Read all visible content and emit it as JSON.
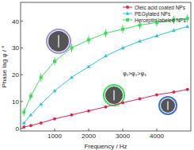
{
  "chart_data": {
    "type": "line",
    "x_label": "Frequency / Hz",
    "y_label": "Phase lag φ / °",
    "annotation": "φ₁>φ₂>φ₃",
    "xlim": [
      0,
      5000
    ],
    "xticks": [
      1000,
      2000,
      3000,
      4000
    ],
    "ylim": [
      -1,
      47
    ],
    "yticks": [
      0,
      10,
      20,
      30,
      40
    ],
    "legend": "top-right",
    "x": [
      100,
      300,
      600,
      1000,
      1500,
      2000,
      2500,
      3000,
      3500,
      4000,
      4500,
      4900
    ],
    "series": [
      {
        "name": "Oleic acid coated NPs",
        "color": "#e0264f",
        "marker": "circle",
        "values": [
          0.5,
          1,
          2,
          3.5,
          5,
          6.5,
          8,
          9.5,
          11,
          12.5,
          13.5,
          14.5
        ]
      },
      {
        "name": "PEGylated NPs",
        "color": "#2ec4d6",
        "marker": "triangle",
        "values": [
          2,
          5,
          9,
          14,
          19,
          23,
          27,
          30,
          32.5,
          34.5,
          36.5,
          38
        ]
      },
      {
        "name": "Herceptin labeled NPs",
        "color": "#3ddc5a",
        "marker": "square",
        "values": [
          6,
          12,
          19,
          25,
          30,
          33,
          35.5,
          37,
          38.5,
          39.5,
          40.5,
          41
        ],
        "errors": [
          1.5,
          1.5,
          1.5,
          1.5,
          1.5,
          1.5,
          1.5,
          1.5,
          1.5,
          1.5,
          1.5,
          1.5
        ]
      }
    ]
  }
}
